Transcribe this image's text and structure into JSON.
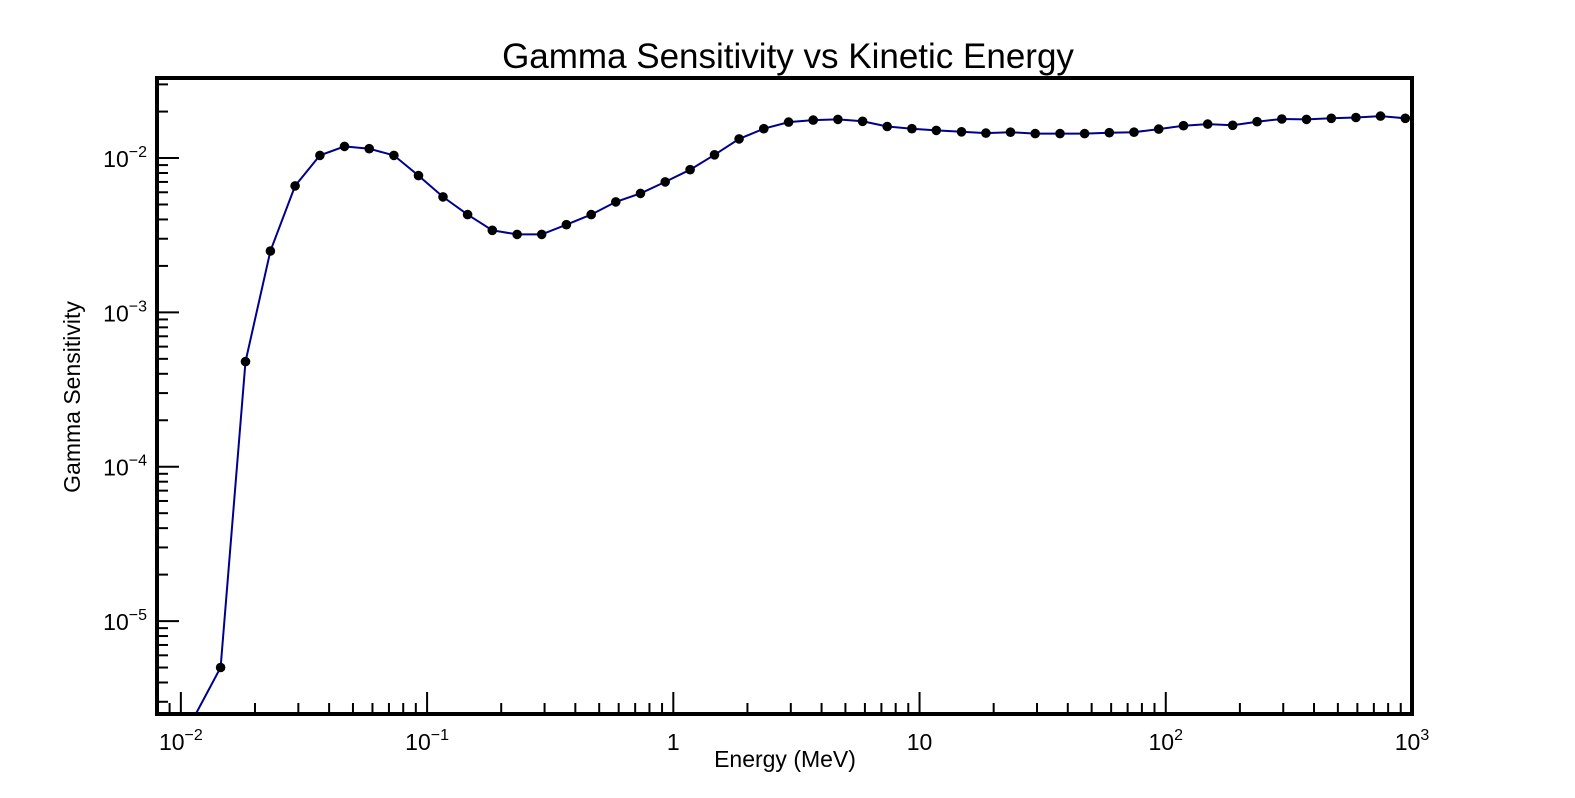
{
  "chart_data": {
    "type": "line",
    "title": "Gamma Sensitivity vs Kinetic Energy",
    "xlabel": "Energy (MeV)",
    "ylabel": "Gamma Sensitivity",
    "xscale": "log",
    "yscale": "log",
    "xlim": [
      0.008,
      1000
    ],
    "ylim": [
      2.5e-06,
      0.033
    ],
    "grid": false,
    "x_ticks": [
      {
        "base": "10",
        "exp": "−2",
        "value": 0.01
      },
      {
        "base": "10",
        "exp": "−1",
        "value": 0.1
      },
      {
        "base": "1",
        "exp": "",
        "value": 1
      },
      {
        "base": "10",
        "exp": "",
        "value": 10
      },
      {
        "base": "10",
        "exp": "2",
        "value": 100
      },
      {
        "base": "10",
        "exp": "3",
        "value": 1000
      }
    ],
    "y_ticks": [
      {
        "base": "10",
        "exp": "−5",
        "value": 1e-05
      },
      {
        "base": "10",
        "exp": "−4",
        "value": 0.0001
      },
      {
        "base": "10",
        "exp": "−3",
        "value": 0.001
      },
      {
        "base": "10",
        "exp": "−2",
        "value": 0.01
      }
    ],
    "series": [
      {
        "line_color": "#00008b",
        "marker_color": "#000000",
        "x": [
          0.0115,
          0.0145,
          0.0183,
          0.0231,
          0.0291,
          0.0367,
          0.0462,
          0.0582,
          0.0733,
          0.0923,
          0.116,
          0.146,
          0.184,
          0.232,
          0.292,
          0.368,
          0.464,
          0.584,
          0.736,
          0.927,
          1.17,
          1.47,
          1.85,
          2.33,
          2.94,
          3.7,
          4.66,
          5.87,
          7.39,
          9.31,
          11.7,
          14.8,
          18.6,
          23.4,
          29.5,
          37.2,
          46.8,
          59.0,
          74.3,
          93.6,
          118,
          148,
          187,
          235,
          296,
          373,
          470,
          592,
          745,
          939
        ],
        "y": [
          2.5e-06,
          5e-06,
          0.00048,
          0.0025,
          0.0066,
          0.0104,
          0.0119,
          0.0115,
          0.0104,
          0.0077,
          0.0056,
          0.0043,
          0.0034,
          0.0032,
          0.0032,
          0.0037,
          0.0043,
          0.0052,
          0.0059,
          0.007,
          0.0084,
          0.0105,
          0.0133,
          0.0155,
          0.0171,
          0.0176,
          0.0178,
          0.0173,
          0.016,
          0.0155,
          0.0151,
          0.0148,
          0.0145,
          0.0147,
          0.0144,
          0.0144,
          0.0144,
          0.0146,
          0.0147,
          0.0154,
          0.0162,
          0.0166,
          0.0163,
          0.0172,
          0.0179,
          0.0178,
          0.0181,
          0.0183,
          0.0187,
          0.0181
        ],
        "marker_start_index": 1
      }
    ]
  }
}
